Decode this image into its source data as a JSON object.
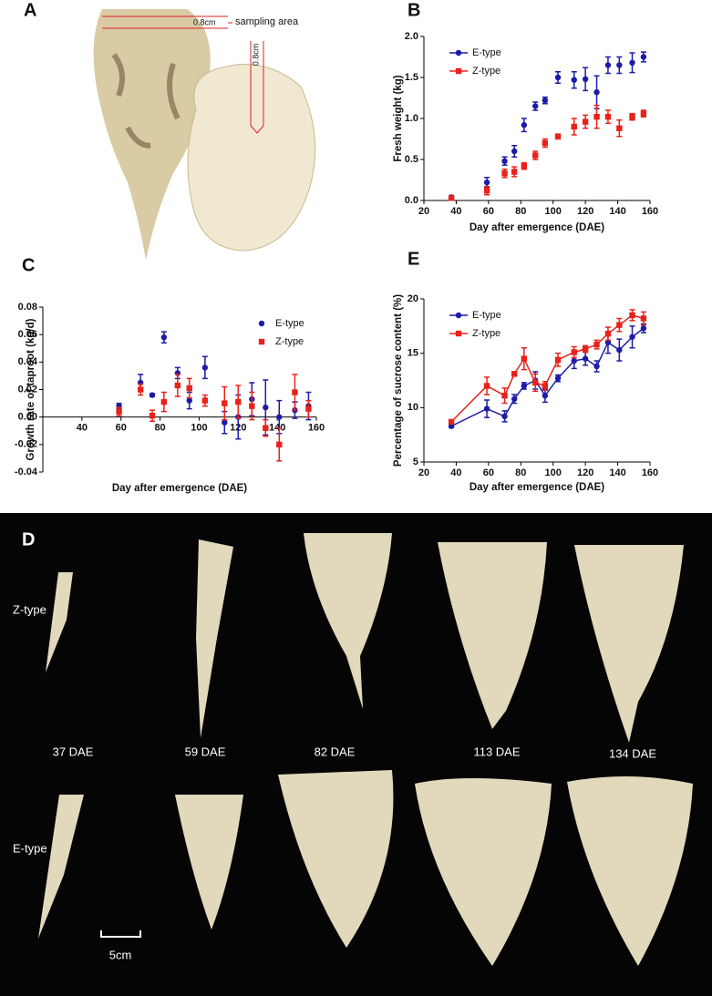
{
  "photo_a": {
    "label": "A",
    "sampling_area": "sampling area",
    "depth_top": "0.8cm",
    "depth_side": "0.8cm"
  },
  "photo_d": {
    "label": "D",
    "rows": [
      "Z-type",
      "E-type"
    ],
    "days": [
      "37 DAE",
      "59 DAE",
      "82 DAE",
      "113 DAE",
      "134 DAE"
    ],
    "scale": "5cm"
  },
  "chart_data": [
    {
      "type": "scatter",
      "panel_label": "B",
      "x_label": "Day after emergence (DAE)",
      "y_label": "Fresh weight (kg)",
      "x": [
        37,
        59,
        70,
        76,
        82,
        89,
        95,
        103,
        113,
        120,
        127,
        134,
        141,
        149,
        156
      ],
      "series": [
        {
          "name": "E-type",
          "color": "#1c1ca8",
          "marker": "circle",
          "values": [
            0.04,
            0.22,
            0.48,
            0.6,
            0.92,
            1.15,
            1.22,
            1.5,
            1.47,
            1.48,
            1.32,
            1.65,
            1.65,
            1.68,
            1.75
          ],
          "errors": [
            0.02,
            0.06,
            0.05,
            0.07,
            0.08,
            0.05,
            0.04,
            0.07,
            0.1,
            0.14,
            0.2,
            0.1,
            0.1,
            0.12,
            0.06
          ]
        },
        {
          "name": "Z-type",
          "color": "#e8221b",
          "marker": "square",
          "values": [
            0.03,
            0.12,
            0.33,
            0.35,
            0.42,
            0.55,
            0.7,
            0.78,
            0.9,
            0.96,
            1.02,
            1.02,
            0.88,
            1.02,
            1.06
          ],
          "errors": [
            0.02,
            0.05,
            0.05,
            0.06,
            0.04,
            0.05,
            0.05,
            0.03,
            0.1,
            0.08,
            0.14,
            0.08,
            0.1,
            0.04,
            0.04
          ]
        }
      ],
      "xlim": [
        20,
        160
      ],
      "xticks": [
        20,
        40,
        60,
        80,
        100,
        120,
        140,
        160
      ],
      "ylim": [
        0,
        2
      ],
      "yticks": [
        {
          "value": 0,
          "label": "0.0"
        },
        0.5,
        {
          "value": 1,
          "label": "1.0"
        },
        1.5,
        {
          "value": 2,
          "label": "2.0"
        }
      ],
      "lines": false,
      "legend": "upper left"
    },
    {
      "type": "scatter",
      "panel_label": "C",
      "x_label": "Day after emergence (DAE)",
      "y_label": "Growth rate of taproot (kg/d)",
      "x": [
        59,
        70,
        76,
        82,
        89,
        95,
        103,
        113,
        120,
        127,
        134,
        141,
        149,
        156
      ],
      "series": [
        {
          "name": "E-type",
          "color": "#1c1ca8",
          "marker": "circle",
          "values": [
            0.008,
            0.025,
            0.016,
            0.058,
            0.032,
            0.012,
            0.036,
            -0.004,
            0.0,
            0.013,
            0.007,
            0.0,
            0.005,
            0.008
          ],
          "errors": [
            0.002,
            0.006,
            0.001,
            0.004,
            0.004,
            0.006,
            0.008,
            0.008,
            0.016,
            0.012,
            0.02,
            0.012,
            0.006,
            0.01
          ]
        },
        {
          "name": "Z-type",
          "color": "#e8221b",
          "marker": "square",
          "values": [
            0.004,
            0.02,
            0.001,
            0.011,
            0.023,
            0.021,
            0.012,
            0.01,
            0.011,
            0.008,
            -0.008,
            -0.02,
            0.018,
            0.006
          ],
          "errors": [
            0.003,
            0.004,
            0.004,
            0.007,
            0.008,
            0.007,
            0.004,
            0.012,
            0.012,
            0.01,
            0.006,
            0.012,
            0.013,
            0.006
          ]
        }
      ],
      "xlim": [
        20,
        160
      ],
      "xticks": [
        40,
        60,
        80,
        100,
        120,
        140,
        160
      ],
      "ylim": [
        -0.04,
        0.08
      ],
      "yticks": [
        -0.04,
        -0.02,
        {
          "value": 0,
          "label": "0.00"
        },
        0.02,
        0.04,
        0.06,
        0.08
      ],
      "lines": false,
      "legend": "upper right",
      "x_axis_at_zero": true
    },
    {
      "type": "line",
      "panel_label": "E",
      "x_label": "Day after emergence (DAE)",
      "y_label": "Percentage of sucrose content (%)",
      "x": [
        37,
        59,
        70,
        76,
        82,
        89,
        95,
        103,
        113,
        120,
        127,
        134,
        141,
        149,
        156
      ],
      "series": [
        {
          "name": "E-type",
          "color": "#1c1ca8",
          "marker": "circle",
          "values": [
            8.3,
            9.9,
            9.2,
            10.8,
            12.0,
            12.5,
            11.1,
            12.7,
            14.3,
            14.5,
            13.8,
            16.0,
            15.3,
            16.5,
            17.3
          ],
          "errors": [
            0.15,
            0.8,
            0.5,
            0.4,
            0.3,
            0.8,
            0.6,
            0.3,
            0.7,
            0.6,
            0.5,
            1.0,
            1.0,
            1.0,
            0.4
          ]
        },
        {
          "name": "Z-type",
          "color": "#e8221b",
          "marker": "square",
          "values": [
            8.7,
            12.0,
            11.1,
            13.1,
            14.5,
            12.3,
            12.0,
            14.4,
            15.1,
            15.4,
            15.8,
            16.8,
            17.6,
            18.5,
            18.2
          ],
          "errors": [
            0.15,
            0.8,
            0.7,
            0.2,
            1.0,
            0.8,
            0.4,
            0.6,
            0.5,
            0.3,
            0.4,
            0.6,
            0.6,
            0.5,
            0.6
          ]
        }
      ],
      "xlim": [
        20,
        160
      ],
      "xticks": [
        20,
        40,
        60,
        80,
        100,
        120,
        140,
        160
      ],
      "ylim": [
        5,
        20
      ],
      "yticks": [
        5,
        10,
        15,
        20
      ],
      "lines": true,
      "legend": "upper left"
    }
  ]
}
